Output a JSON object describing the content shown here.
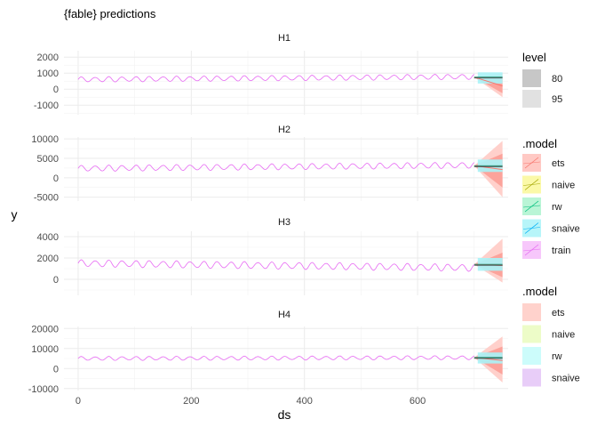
{
  "chart_data": {
    "type": "line",
    "title": "{fable} predictions",
    "xlabel": "ds",
    "ylabel": "y",
    "xlim": [
      -25,
      760
    ],
    "x_ticks": [
      0,
      200,
      400,
      600
    ],
    "train_end": 700,
    "forecast_end": 750,
    "grid": true,
    "panels": [
      {
        "name": "H1",
        "ylim": [
          -1600,
          2400
        ],
        "y_ticks": [
          -1000,
          0,
          1000,
          2000
        ],
        "y_tick_labels": [
          "-1000",
          "0",
          "1000",
          "2000"
        ],
        "train": {
          "level": 600,
          "trend": 0.25,
          "amplitude": 150,
          "period": 24
        },
        "forecast": {
          "start": 750,
          "ets": {
            "mean": 200,
            "lo80": -250,
            "hi80": 650,
            "lo95": -500,
            "hi95": 1000
          },
          "snaive": {
            "lo95": 350,
            "hi95": 1050
          },
          "rw": 750,
          "naive": 750
        }
      },
      {
        "name": "H2",
        "ylim": [
          -6000,
          10500
        ],
        "y_ticks": [
          -5000,
          0,
          5000,
          10000
        ],
        "y_tick_labels": [
          "-5000",
          "0",
          "5000",
          "10000"
        ],
        "train": {
          "level": 2400,
          "trend": 1.2,
          "amplitude": 700,
          "period": 24
        },
        "forecast": {
          "start": 3100,
          "ets": {
            "mean": 2100,
            "lo80": -2500,
            "hi80": 6200,
            "lo95": -5000,
            "hi95": 9500
          },
          "snaive": {
            "lo95": 1500,
            "hi95": 4700
          },
          "rw": 3100,
          "naive": 3100
        }
      },
      {
        "name": "H3",
        "ylim": [
          -1500,
          4500
        ],
        "y_ticks": [
          0,
          2000,
          4000
        ],
        "y_tick_labels": [
          "0",
          "2000",
          "4000"
        ],
        "train": {
          "level": 1500,
          "trend": -0.6,
          "amplitude": 300,
          "period": 24
        },
        "forecast": {
          "start": 1400,
          "ets": {
            "mean": 1300,
            "lo80": 200,
            "hi80": 2500,
            "lo95": -300,
            "hi95": 3800
          },
          "snaive": {
            "lo95": 800,
            "hi95": 2000
          },
          "rw": 1400,
          "naive": 1400
        }
      },
      {
        "name": "H4",
        "ylim": [
          -11000,
          21000
        ],
        "y_ticks": [
          -10000,
          0,
          10000,
          20000
        ],
        "y_tick_labels": [
          "-10000",
          "0",
          "10000",
          "20000"
        ],
        "train": {
          "level": 5000,
          "trend": 0.6,
          "amplitude": 900,
          "period": 24
        },
        "forecast": {
          "start": 5500,
          "ets": {
            "mean": 4000,
            "lo80": -3000,
            "hi80": 11000,
            "lo95": -7000,
            "hi95": 16000
          },
          "snaive": {
            "lo95": 2500,
            "hi95": 8000
          },
          "rw": 5500,
          "naive": 5500
        }
      }
    ],
    "legends": [
      {
        "title": "level",
        "items": [
          {
            "label": "80",
            "color": "#bdbdbd",
            "alpha": 0.85
          },
          {
            "label": "95",
            "color": "#bdbdbd",
            "alpha": 0.45
          }
        ]
      },
      {
        "title": ".model",
        "items": [
          {
            "label": "ets",
            "color": "#F8766D",
            "fill": "#ffc9c4"
          },
          {
            "label": "naive",
            "color": "#A3A500",
            "fill": "#fbf9a8"
          },
          {
            "label": "rw",
            "color": "#00BF7D",
            "fill": "#b9f5d6"
          },
          {
            "label": "snaive",
            "color": "#00B0F6",
            "fill": "#b7f5f9"
          },
          {
            "label": "train",
            "color": "#E76BF3",
            "fill": "#f7c7fb"
          }
        ]
      },
      {
        "title": ".model",
        "items": [
          {
            "label": "ets",
            "fill": "#ffd2cc"
          },
          {
            "label": "naive",
            "fill": "#edfcc8"
          },
          {
            "label": "rw",
            "fill": "#ccfcfb"
          },
          {
            "label": "snaive",
            "fill": "#e8cdf8"
          }
        ]
      }
    ],
    "colors": {
      "ets": "#F8766D",
      "ets_light": "#ffd0cb",
      "snaive": "#a8f3f7",
      "train": "#E76BF3",
      "rw": "#1a8a6a",
      "naive": "#444444"
    }
  }
}
